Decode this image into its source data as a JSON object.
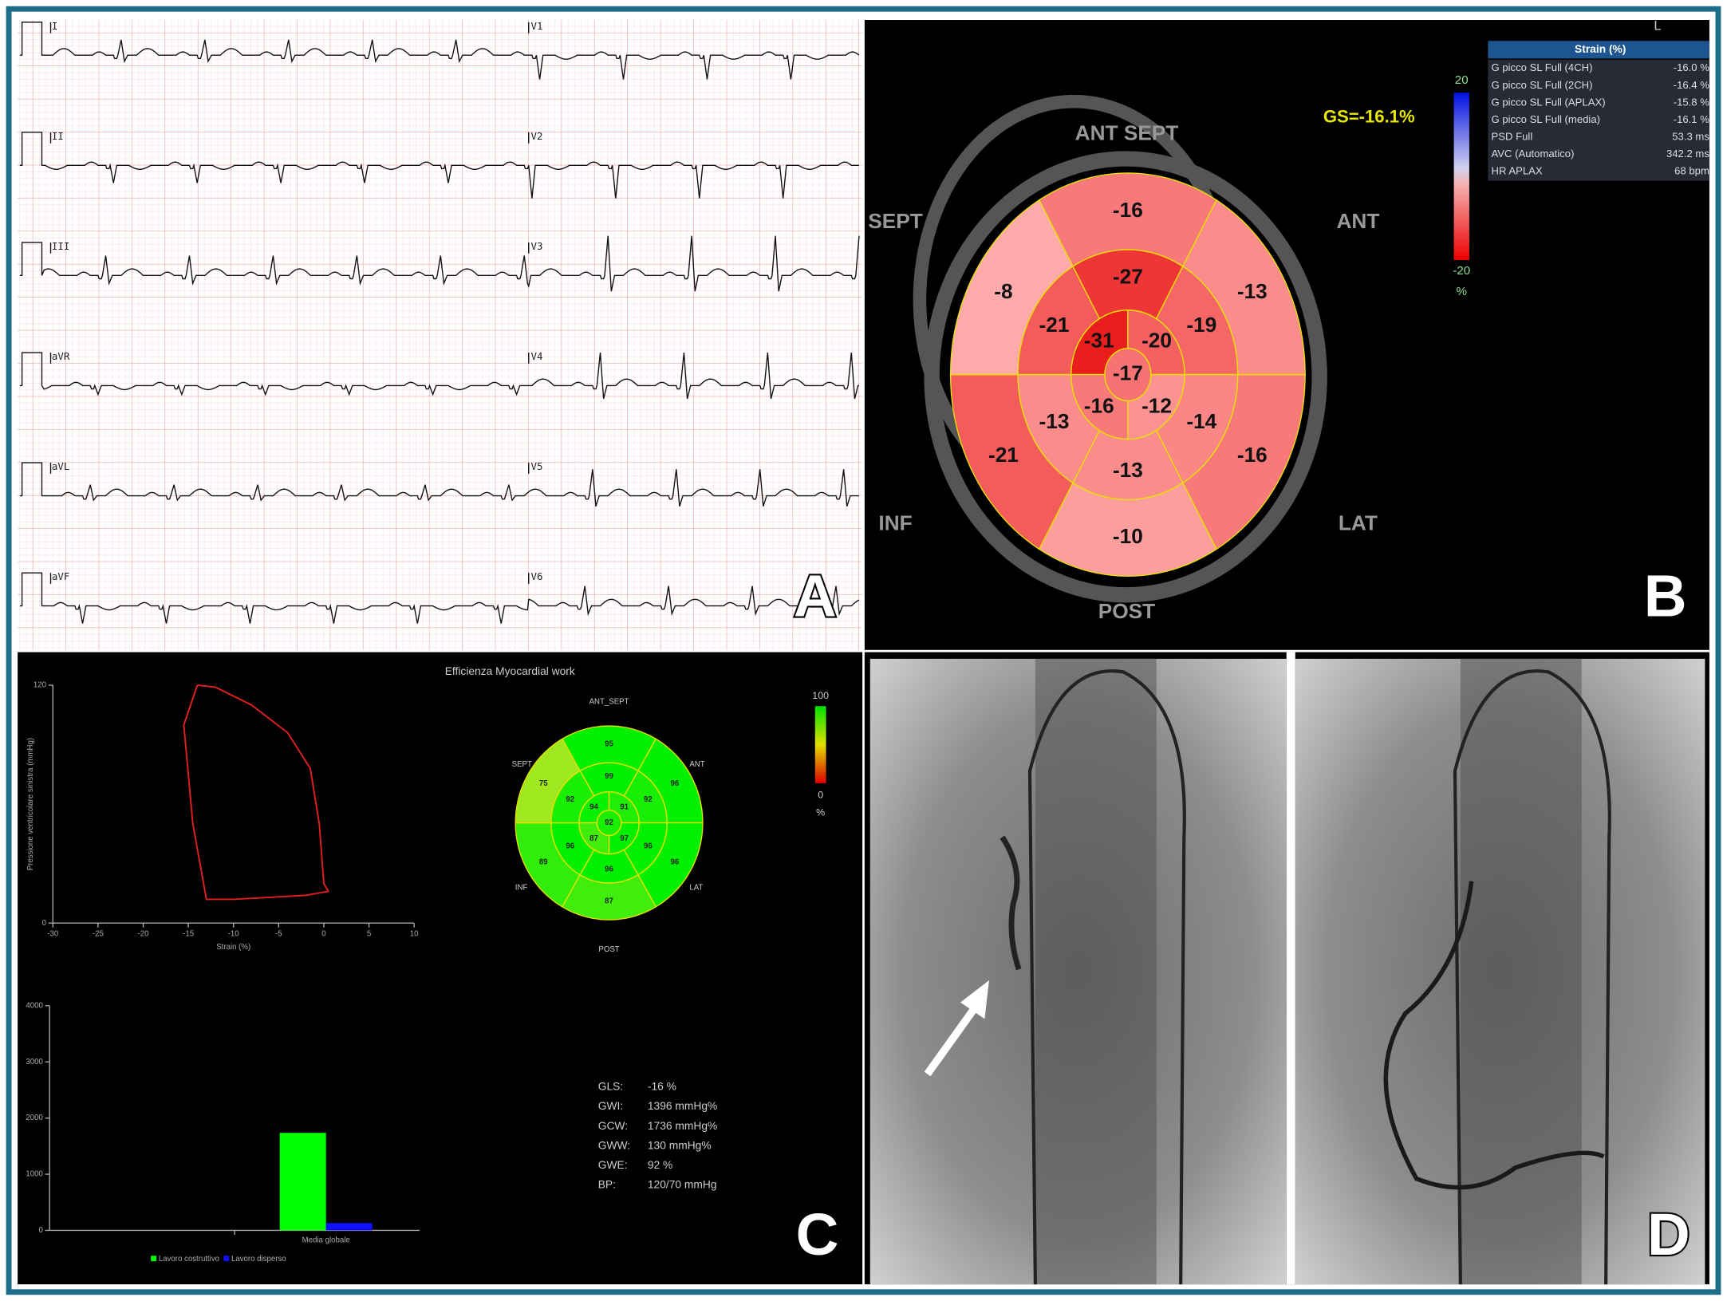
{
  "panel_a": {
    "label": "A",
    "limb_leads": [
      "I",
      "II",
      "III",
      "aVR",
      "aVL",
      "aVF"
    ],
    "chest_leads": [
      "V1",
      "V2",
      "V3",
      "V4",
      "V5",
      "V6"
    ]
  },
  "panel_b": {
    "label": "B",
    "view": "L",
    "global_strain": "GS=-16.1%",
    "walls": {
      "ant_sept": "ANT  SEPT",
      "sept": "SEPT",
      "ant": "ANT",
      "inf": "INF",
      "lat": "LAT",
      "post": "POST"
    },
    "segments": {
      "basal": [
        -16,
        -13,
        -16,
        -10,
        -21,
        -8
      ],
      "mid": [
        -27,
        -19,
        -14,
        -13,
        -13,
        -21
      ],
      "apical": [
        -31,
        -20,
        -12,
        -16
      ],
      "apex": -17
    },
    "scale": {
      "max": "20",
      "min": "-20",
      "unit": "%"
    },
    "table": {
      "title": "Strain (%)",
      "rows": [
        [
          "G picco SL Full (4CH)",
          "-16.0 %"
        ],
        [
          "G picco SL Full (2CH)",
          "-16.4 %"
        ],
        [
          "G picco SL Full (APLAX)",
          "-15.8 %"
        ],
        [
          "G picco SL Full (media)",
          "-16.1 %"
        ],
        [
          "PSD Full",
          "53.3 ms"
        ],
        [
          "AVC (Automatico)",
          "342.2 ms"
        ],
        [
          "HR APLAX",
          "68 bpm"
        ]
      ]
    }
  },
  "panel_c": {
    "label": "C",
    "title": "Efficienza Myocardial work",
    "loop_chart": {
      "y_label": "Pressione ventricolare sinistra (mmHg)",
      "x_label": "Strain (%)",
      "xlim": [
        -30,
        10
      ],
      "xticks": [
        -30,
        -25,
        -20,
        -15,
        -10,
        -5,
        0,
        5,
        10
      ],
      "ylim": [
        0,
        120
      ],
      "yticks": [
        0,
        120
      ],
      "x": [
        -14,
        -12,
        -8,
        -4,
        -1.5,
        -0.5,
        0,
        0.5,
        -2,
        -6,
        -10,
        -13,
        -14.5,
        -15.5,
        -14
      ],
      "values": [
        120,
        119,
        110,
        96,
        78,
        50,
        20,
        16,
        14,
        13,
        12,
        12,
        50,
        100,
        120
      ],
      "color": "#e02020"
    },
    "bullseye": {
      "walls": {
        "ant_sept": "ANT_SEPT",
        "sept": "SEPT",
        "ant": "ANT",
        "inf": "INF",
        "lat": "LAT",
        "post": "POST"
      },
      "basal": [
        95,
        96,
        96,
        87,
        89,
        75
      ],
      "mid": [
        99,
        92,
        96,
        96,
        96,
        92
      ],
      "apical": [
        94,
        91,
        97,
        87
      ],
      "apex": 92,
      "scale": {
        "max": "100",
        "min": "0",
        "unit": "%"
      }
    },
    "work_chart": {
      "type": "bar",
      "categories": [
        "Media globale"
      ],
      "ylim": [
        0,
        4000
      ],
      "yticks": [
        0,
        1000,
        2000,
        3000,
        4000
      ],
      "series": [
        {
          "name": "Lavoro costruttivo",
          "color": "#00ff00",
          "values": [
            1736
          ]
        },
        {
          "name": "Lavoro disperso",
          "color": "#1010ff",
          "values": [
            130
          ]
        }
      ]
    },
    "stats": [
      [
        "GLS:",
        "-16 %"
      ],
      [
        "GWI:",
        "1396 mmHg%"
      ],
      [
        "GCW:",
        "1736 mmHg%"
      ],
      [
        "GWW:",
        "130 mmHg%"
      ],
      [
        "GWE:",
        "92 %"
      ],
      [
        "BP:",
        "120/70 mmHg"
      ]
    ]
  },
  "panel_d": {
    "label": "D"
  }
}
